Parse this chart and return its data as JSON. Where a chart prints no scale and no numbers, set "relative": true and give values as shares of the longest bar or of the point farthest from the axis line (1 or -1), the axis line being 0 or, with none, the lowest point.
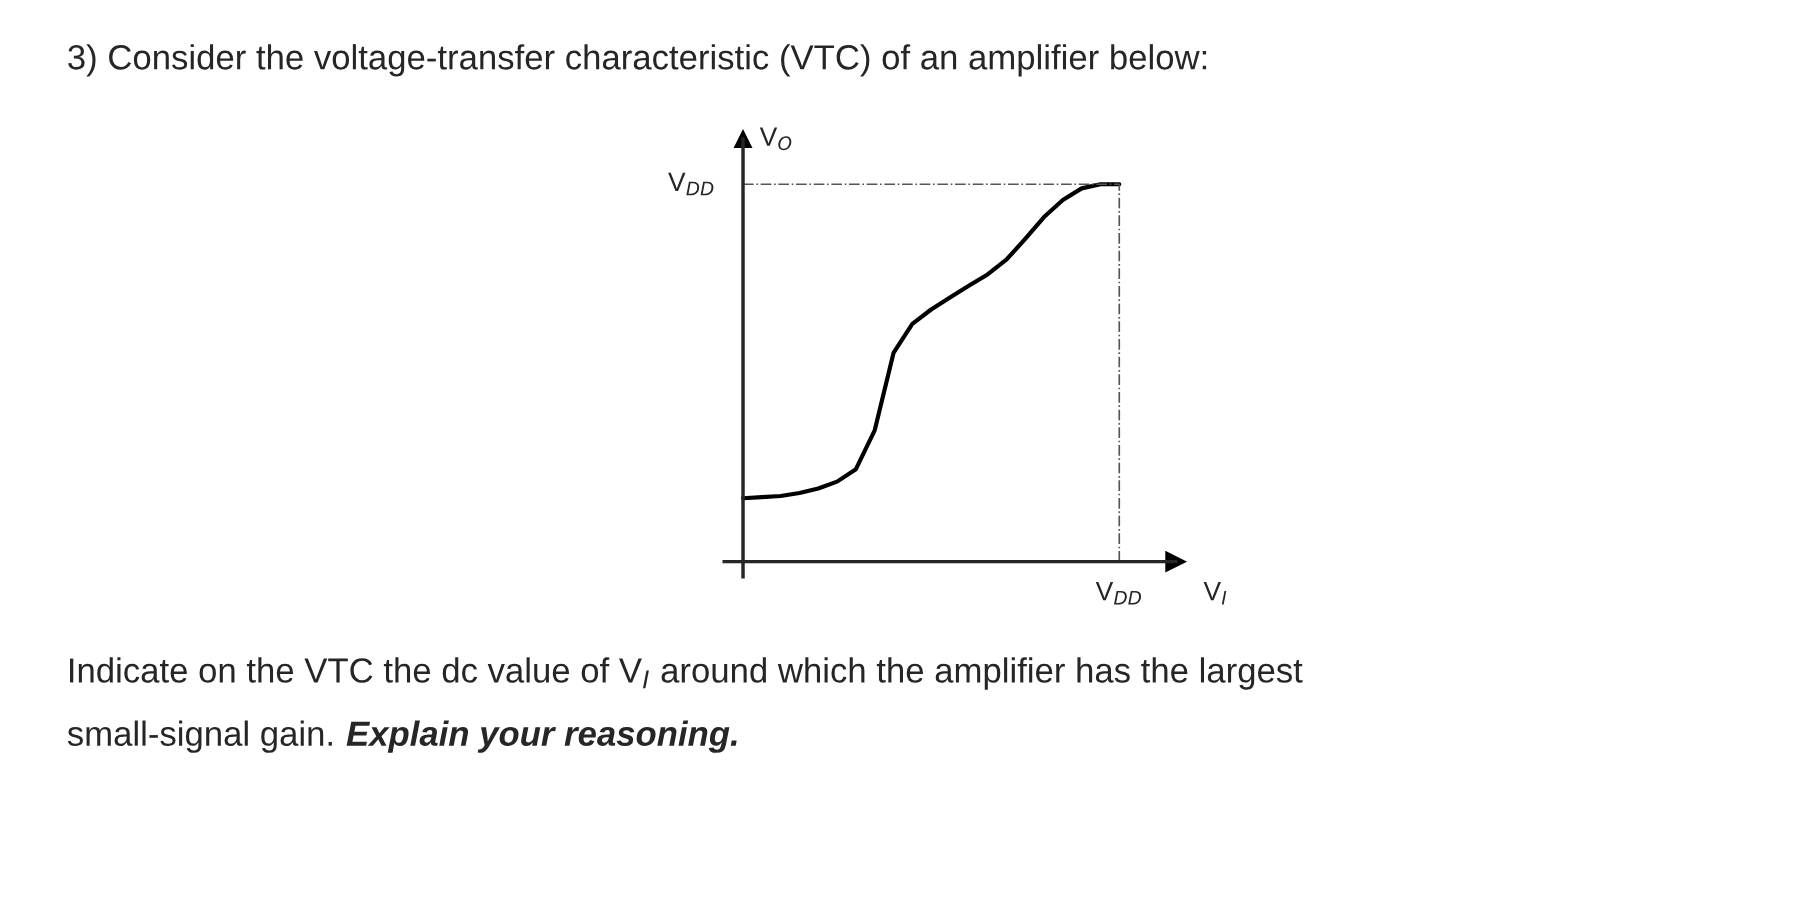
{
  "chart_data": {
    "type": "line",
    "relative": true,
    "title": "3) Consider the voltage-transfer characteristic (VTC) of an amplifier below:",
    "xlabel": "V$_{I}$",
    "ylabel": "V$_{O}$",
    "categories": [
      null,
      null,
      null,
      null,
      null,
      null,
      null,
      null,
      null,
      null,
      null,
      null,
      null,
      null,
      null,
      null,
      null,
      null,
      null,
      null,
      null
    ],
    "series": [
      {
        "color": "#000000",
        "values": [
          0.168,
          0.171,
          0.174,
          0.182,
          0.194,
          0.212,
          0.245,
          0.348,
          0.553,
          0.63,
          0.668,
          0.7,
          0.731,
          0.761,
          0.8,
          0.855,
          0.913,
          0.958,
          0.989,
          1.0,
          1.0
        ]
      }
    ],
    "ref_lines": [
      {
        "axis": "y",
        "value": 1,
        "label": "V$_{DD}$",
        "color": "#555555",
        "line_style": "dashdot"
      }
    ],
    "annotations": [
      "Indicate on the VTC the dc value of V$_{I}$ around which the amplifier has the largest",
      "small-signal gain.",
      "Explain your reasoning.",
      "V$_{DD}$"
    ],
    "marker": "none",
    "line_style": "solid"
  }
}
